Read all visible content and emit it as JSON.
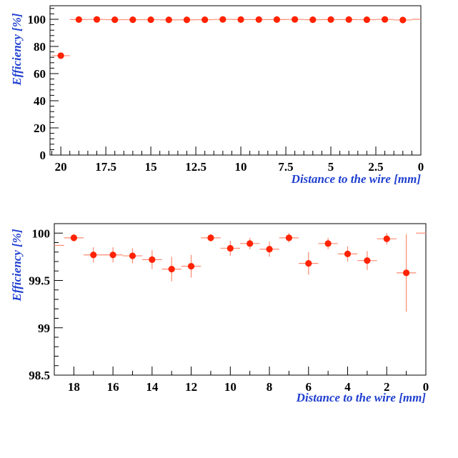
{
  "chart_data": [
    {
      "type": "scatter",
      "xlabel": "Distance to the wire [mm]",
      "ylabel": "Efficiency [%]",
      "xlim": [
        20.6,
        0
      ],
      "ylim": [
        0,
        110
      ],
      "x_reversed": true,
      "xticks": [
        20,
        17.5,
        15,
        12.5,
        10,
        7.5,
        5,
        2.5,
        0
      ],
      "xtick_labels": [
        "20",
        "17.5",
        "15",
        "12.5",
        "10",
        "7.5",
        "5",
        "2.5",
        "0"
      ],
      "yticks": [
        0,
        20,
        40,
        60,
        80,
        100
      ],
      "ytick_labels": [
        "0",
        "20",
        "40",
        "60",
        "80",
        "100"
      ],
      "marker_color": "#ff2200",
      "error_color": "#ff8a70",
      "series": [
        {
          "x": [
            20,
            19,
            18,
            17,
            16,
            15,
            14,
            13,
            12,
            11,
            10,
            9,
            8,
            7,
            6,
            5,
            4,
            3,
            2,
            1,
            0
          ],
          "y": [
            73.2,
            99.8,
            99.9,
            99.7,
            99.7,
            99.7,
            99.6,
            99.6,
            99.7,
            99.9,
            99.8,
            99.8,
            99.8,
            99.9,
            99.7,
            99.8,
            99.8,
            99.7,
            99.9,
            99.5,
            100
          ],
          "xerr": [
            0.5,
            0.5,
            0.5,
            0.5,
            0.5,
            0.5,
            0.5,
            0.5,
            0.5,
            0.5,
            0.5,
            0.5,
            0.5,
            0.5,
            0.5,
            0.5,
            0.5,
            0.5,
            0.5,
            0.5,
            0.5
          ],
          "yerr": [
            1.5,
            0.3,
            0.3,
            0.3,
            0.3,
            0.3,
            0.3,
            0.3,
            0.3,
            0.3,
            0.3,
            0.3,
            0.3,
            0.3,
            0.3,
            0.3,
            0.3,
            0.3,
            0.3,
            0.3,
            0
          ],
          "marker": [
            true,
            true,
            true,
            true,
            true,
            true,
            true,
            true,
            true,
            true,
            true,
            true,
            true,
            true,
            true,
            true,
            true,
            true,
            true,
            true,
            false
          ]
        }
      ]
    },
    {
      "type": "scatter",
      "xlabel": "Distance to the wire [mm]",
      "ylabel": "Efficiency [%]",
      "xlim": [
        19,
        0
      ],
      "ylim": [
        98.5,
        100.1
      ],
      "x_reversed": true,
      "xticks": [
        18,
        16,
        14,
        12,
        10,
        8,
        6,
        4,
        2,
        0
      ],
      "xtick_labels": [
        "18",
        "16",
        "14",
        "12",
        "10",
        "8",
        "6",
        "4",
        "2",
        "0"
      ],
      "yticks": [
        98.5,
        99,
        99.5,
        100
      ],
      "ytick_labels": [
        "98.5",
        "99",
        "99.5",
        "100"
      ],
      "marker_color": "#ff2200",
      "error_color": "#ff8a70",
      "series": [
        {
          "x": [
            19,
            18,
            17,
            16,
            15,
            14,
            13,
            12,
            11,
            10,
            9,
            8,
            7,
            6,
            5,
            4,
            3,
            2,
            1,
            0
          ],
          "y": [
            99.87,
            99.95,
            99.77,
            99.77,
            99.76,
            99.72,
            99.62,
            99.65,
            99.95,
            99.84,
            99.89,
            99.83,
            99.95,
            99.68,
            99.89,
            99.78,
            99.71,
            99.94,
            99.58,
            100
          ],
          "xerr": [
            0.5,
            0.5,
            0.5,
            0.5,
            0.5,
            0.5,
            0.5,
            0.5,
            0.5,
            0.5,
            0.5,
            0.5,
            0.5,
            0.5,
            0.5,
            0.5,
            0.5,
            0.5,
            0.5,
            0.5
          ],
          "yerr": [
            0,
            0.04,
            0.08,
            0.08,
            0.08,
            0.1,
            0.13,
            0.12,
            0.04,
            0.08,
            0.06,
            0.08,
            0.05,
            0.12,
            0.06,
            0.08,
            0.1,
            0.06,
            0.41,
            0
          ],
          "marker": [
            false,
            true,
            true,
            true,
            true,
            true,
            true,
            true,
            true,
            true,
            true,
            true,
            true,
            true,
            true,
            true,
            true,
            true,
            true,
            false
          ]
        }
      ]
    }
  ]
}
